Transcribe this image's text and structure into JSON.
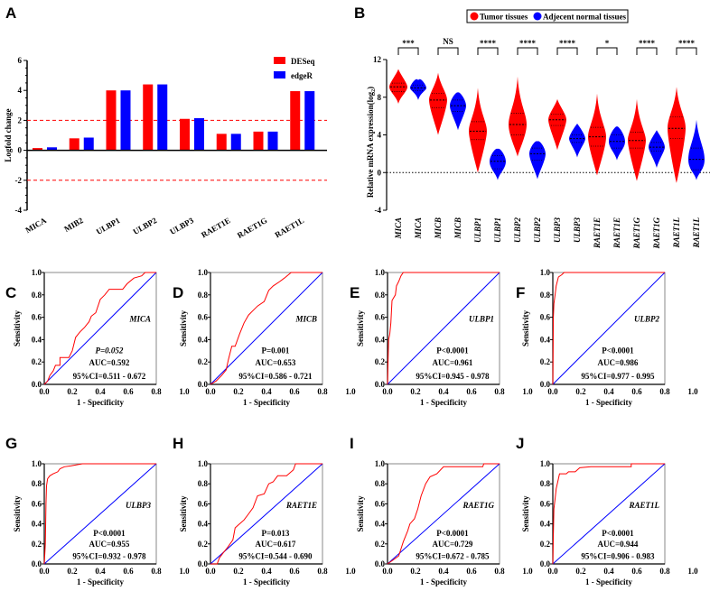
{
  "chart_data": [
    {
      "panel": "A",
      "type": "bar",
      "ylabel": "Logfold change",
      "ylim": [
        -4,
        6
      ],
      "yticks": [
        "-4",
        "-2",
        "0",
        "2",
        "4",
        "6"
      ],
      "reference_lines": [
        2,
        -2
      ],
      "categories": [
        "MICA",
        "MIB2",
        "ULBP1",
        "ULBP2",
        "ULBP3",
        "RAET1E",
        "RAET1G",
        "RAET1L"
      ],
      "series": [
        {
          "name": "DESeq",
          "color": "#ff0000",
          "values": [
            0.15,
            0.8,
            4.0,
            4.4,
            2.1,
            1.1,
            1.25,
            3.95
          ]
        },
        {
          "name": "edgeR",
          "color": "#0000ff",
          "values": [
            0.2,
            0.85,
            4.0,
            4.4,
            2.15,
            1.1,
            1.25,
            3.95
          ]
        }
      ],
      "legend": "top-right"
    },
    {
      "panel": "B",
      "type": "violin",
      "ylabel": "Relative mRNA expression(log",
      "ylabel_sub": "2",
      "ylabel_end": ")",
      "ylim": [
        -4,
        12
      ],
      "yticks": [
        "-4",
        "0",
        "4",
        "8",
        "12"
      ],
      "reference_line": 0,
      "legend": "top",
      "groups": [
        {
          "name": "Tumor tissues",
          "color": "#ff0000"
        },
        {
          "name": "Adjecent normal tissues",
          "color": "#0000ff"
        }
      ],
      "categories": [
        "MICA",
        "MICA",
        "MICB",
        "MICB",
        "ULBP1",
        "ULBP1",
        "ULBP2",
        "ULBP2",
        "ULBP3",
        "ULBP3",
        "RAET1E",
        "RAET1E",
        "RAET1G",
        "RAET1G",
        "RAET1L",
        "RAET1L"
      ],
      "violins": [
        {
          "group": 0,
          "min": 7.3,
          "q1": 8.6,
          "median": 9.1,
          "q3": 9.5,
          "max": 11.0
        },
        {
          "group": 1,
          "min": 7.7,
          "q1": 8.7,
          "median": 9.0,
          "q3": 9.3,
          "max": 9.8
        },
        {
          "group": 0,
          "min": 4.0,
          "q1": 6.9,
          "median": 7.7,
          "q3": 8.4,
          "max": 10.6
        },
        {
          "group": 1,
          "min": 4.5,
          "q1": 6.5,
          "median": 7.1,
          "q3": 7.7,
          "max": 8.5
        },
        {
          "group": 0,
          "min": 0.0,
          "q1": 3.5,
          "median": 4.4,
          "q3": 5.4,
          "max": 9.0
        },
        {
          "group": 1,
          "min": -0.8,
          "q1": 0.4,
          "median": 1.2,
          "q3": 1.8,
          "max": 2.5
        },
        {
          "group": 0,
          "min": 1.7,
          "q1": 4.0,
          "median": 5.1,
          "q3": 6.3,
          "max": 10.2
        },
        {
          "group": 1,
          "min": -0.7,
          "q1": 1.3,
          "median": 2.0,
          "q3": 2.6,
          "max": 3.3
        },
        {
          "group": 0,
          "min": 2.4,
          "q1": 5.0,
          "median": 5.6,
          "q3": 6.2,
          "max": 7.8
        },
        {
          "group": 1,
          "min": 1.6,
          "q1": 3.2,
          "median": 3.6,
          "q3": 4.0,
          "max": 5.2
        },
        {
          "group": 0,
          "min": -0.3,
          "q1": 2.8,
          "median": 3.8,
          "q3": 4.8,
          "max": 8.4
        },
        {
          "group": 1,
          "min": 1.3,
          "q1": 2.6,
          "median": 3.3,
          "q3": 4.0,
          "max": 4.9
        },
        {
          "group": 0,
          "min": -0.9,
          "q1": 2.6,
          "median": 3.4,
          "q3": 4.3,
          "max": 7.8
        },
        {
          "group": 1,
          "min": 0.5,
          "q1": 2.3,
          "median": 2.7,
          "q3": 3.2,
          "max": 4.5
        },
        {
          "group": 0,
          "min": -1.1,
          "q1": 3.6,
          "median": 4.7,
          "q3": 5.9,
          "max": 9.1
        },
        {
          "group": 1,
          "min": -0.8,
          "q1": 0.3,
          "median": 1.4,
          "q3": 2.6,
          "max": 5.6
        }
      ],
      "significance": [
        "***",
        "NS",
        "****",
        "****",
        "****",
        "*",
        "****",
        "****"
      ]
    }
  ],
  "roc": {
    "type": "line",
    "xlabel": "1 - Specificity",
    "ylabel": "Sensitivity",
    "xticks": [
      "0.0",
      "0.2",
      "0.4",
      "0.6",
      "0.8",
      "1.0"
    ],
    "yticks": [
      "0.0",
      "0.2",
      "0.4",
      "0.6",
      "0.8",
      "1.0"
    ],
    "curve_color": "#ff0000",
    "reference_color": "#0000ff",
    "panels": [
      {
        "panel": "C",
        "gene": "MICA",
        "p_value": "P=0.052",
        "p_italic_all": true,
        "auc": "AUC=0.592",
        "ci": "95%CI=0.511 - 0.672",
        "points": [
          [
            0,
            0
          ],
          [
            0.03,
            0.03
          ],
          [
            0.05,
            0.08
          ],
          [
            0.08,
            0.12
          ],
          [
            0.1,
            0.17
          ],
          [
            0.14,
            0.17
          ],
          [
            0.14,
            0.24
          ],
          [
            0.22,
            0.24
          ],
          [
            0.25,
            0.3
          ],
          [
            0.28,
            0.42
          ],
          [
            0.32,
            0.47
          ],
          [
            0.36,
            0.51
          ],
          [
            0.4,
            0.56
          ],
          [
            0.42,
            0.61
          ],
          [
            0.46,
            0.64
          ],
          [
            0.5,
            0.76
          ],
          [
            0.54,
            0.8
          ],
          [
            0.58,
            0.85
          ],
          [
            0.7,
            0.85
          ],
          [
            0.74,
            0.9
          ],
          [
            0.8,
            0.95
          ],
          [
            0.87,
            0.97
          ],
          [
            0.9,
            1
          ],
          [
            1,
            1
          ]
        ]
      },
      {
        "panel": "D",
        "gene": "MICB",
        "p_value": "P=0.001",
        "auc": "AUC=0.653",
        "ci": "95%CI=0.586 - 0.721",
        "points": [
          [
            0,
            0
          ],
          [
            0.05,
            0.03
          ],
          [
            0.1,
            0.08
          ],
          [
            0.14,
            0.13
          ],
          [
            0.16,
            0.22
          ],
          [
            0.19,
            0.34
          ],
          [
            0.22,
            0.34
          ],
          [
            0.26,
            0.45
          ],
          [
            0.3,
            0.55
          ],
          [
            0.34,
            0.62
          ],
          [
            0.38,
            0.66
          ],
          [
            0.42,
            0.7
          ],
          [
            0.48,
            0.74
          ],
          [
            0.52,
            0.84
          ],
          [
            0.56,
            0.88
          ],
          [
            0.62,
            0.92
          ],
          [
            0.66,
            0.95
          ],
          [
            0.72,
            1
          ],
          [
            1,
            1
          ]
        ]
      },
      {
        "panel": "E",
        "gene": "ULBP1",
        "p_value": "P<0.0001",
        "auc": "AUC=0.961",
        "ci": "95%CI=0.945 - 0.978",
        "points": [
          [
            0,
            0
          ],
          [
            0.005,
            0.2
          ],
          [
            0.01,
            0.4
          ],
          [
            0.02,
            0.45
          ],
          [
            0.03,
            0.55
          ],
          [
            0.04,
            0.75
          ],
          [
            0.07,
            0.8
          ],
          [
            0.08,
            0.88
          ],
          [
            0.1,
            0.92
          ],
          [
            0.12,
            0.97
          ],
          [
            0.14,
            1
          ],
          [
            1,
            1
          ]
        ]
      },
      {
        "panel": "F",
        "gene": "ULBP2",
        "p_value": "P<0.0001",
        "auc": "AUC=0.986",
        "ci": "95%CI=0.977 - 0.995",
        "points": [
          [
            0,
            0
          ],
          [
            0.005,
            0.6
          ],
          [
            0.01,
            0.72
          ],
          [
            0.02,
            0.8
          ],
          [
            0.03,
            0.88
          ],
          [
            0.05,
            0.96
          ],
          [
            0.08,
            0.98
          ],
          [
            0.1,
            1
          ],
          [
            1,
            1
          ]
        ]
      },
      {
        "panel": "G",
        "gene": "ULBP3",
        "p_value": "P<0.0001",
        "auc": "AUC=0.955",
        "ci": "95%CI=0.932 - 0.978",
        "points": [
          [
            0,
            0
          ],
          [
            0.01,
            0.2
          ],
          [
            0.015,
            0.6
          ],
          [
            0.02,
            0.78
          ],
          [
            0.03,
            0.85
          ],
          [
            0.05,
            0.88
          ],
          [
            0.08,
            0.9
          ],
          [
            0.12,
            0.92
          ],
          [
            0.14,
            0.95
          ],
          [
            0.18,
            0.97
          ],
          [
            0.24,
            0.98
          ],
          [
            0.34,
            1
          ],
          [
            1,
            1
          ]
        ]
      },
      {
        "panel": "H",
        "gene": "RAET1E",
        "p_value": "P=0.013",
        "auc": "AUC=0.617",
        "ci": "95%CI=0.544 - 0.690",
        "points": [
          [
            0,
            0
          ],
          [
            0.06,
            0
          ],
          [
            0.08,
            0.06
          ],
          [
            0.12,
            0.12
          ],
          [
            0.15,
            0.16
          ],
          [
            0.2,
            0.24
          ],
          [
            0.22,
            0.36
          ],
          [
            0.26,
            0.4
          ],
          [
            0.3,
            0.44
          ],
          [
            0.34,
            0.5
          ],
          [
            0.38,
            0.56
          ],
          [
            0.42,
            0.68
          ],
          [
            0.48,
            0.7
          ],
          [
            0.52,
            0.8
          ],
          [
            0.56,
            0.82
          ],
          [
            0.6,
            0.88
          ],
          [
            0.68,
            0.88
          ],
          [
            0.74,
            0.94
          ],
          [
            0.76,
            1
          ],
          [
            1,
            1
          ]
        ]
      },
      {
        "panel": "I",
        "gene": "RAET1G",
        "p_value": "P<0.0001",
        "auc": "AUC=0.729",
        "ci": "95%CI=0.672 - 0.785",
        "points": [
          [
            0,
            0
          ],
          [
            0.05,
            0.04
          ],
          [
            0.1,
            0.08
          ],
          [
            0.14,
            0.22
          ],
          [
            0.18,
            0.33
          ],
          [
            0.2,
            0.4
          ],
          [
            0.24,
            0.45
          ],
          [
            0.27,
            0.55
          ],
          [
            0.3,
            0.68
          ],
          [
            0.34,
            0.8
          ],
          [
            0.38,
            0.87
          ],
          [
            0.44,
            0.9
          ],
          [
            0.5,
            0.97
          ],
          [
            0.85,
            0.97
          ],
          [
            0.86,
            1
          ],
          [
            1,
            1
          ]
        ]
      },
      {
        "panel": "J",
        "gene": "RAET1L",
        "p_value": "P<0.0001",
        "auc": "AUC=0.944",
        "ci": "95%CI=0.906 - 0.983",
        "points": [
          [
            0,
            0
          ],
          [
            0.005,
            0.3
          ],
          [
            0.01,
            0.55
          ],
          [
            0.02,
            0.65
          ],
          [
            0.03,
            0.75
          ],
          [
            0.05,
            0.85
          ],
          [
            0.06,
            0.9
          ],
          [
            0.12,
            0.9
          ],
          [
            0.14,
            0.92
          ],
          [
            0.2,
            0.92
          ],
          [
            0.24,
            0.96
          ],
          [
            0.34,
            0.97
          ],
          [
            0.7,
            0.97
          ],
          [
            0.7,
            1
          ],
          [
            1,
            1
          ]
        ]
      }
    ]
  },
  "panel_labels": [
    "A",
    "B",
    "C",
    "D",
    "E",
    "F",
    "G",
    "H",
    "I",
    "J"
  ]
}
